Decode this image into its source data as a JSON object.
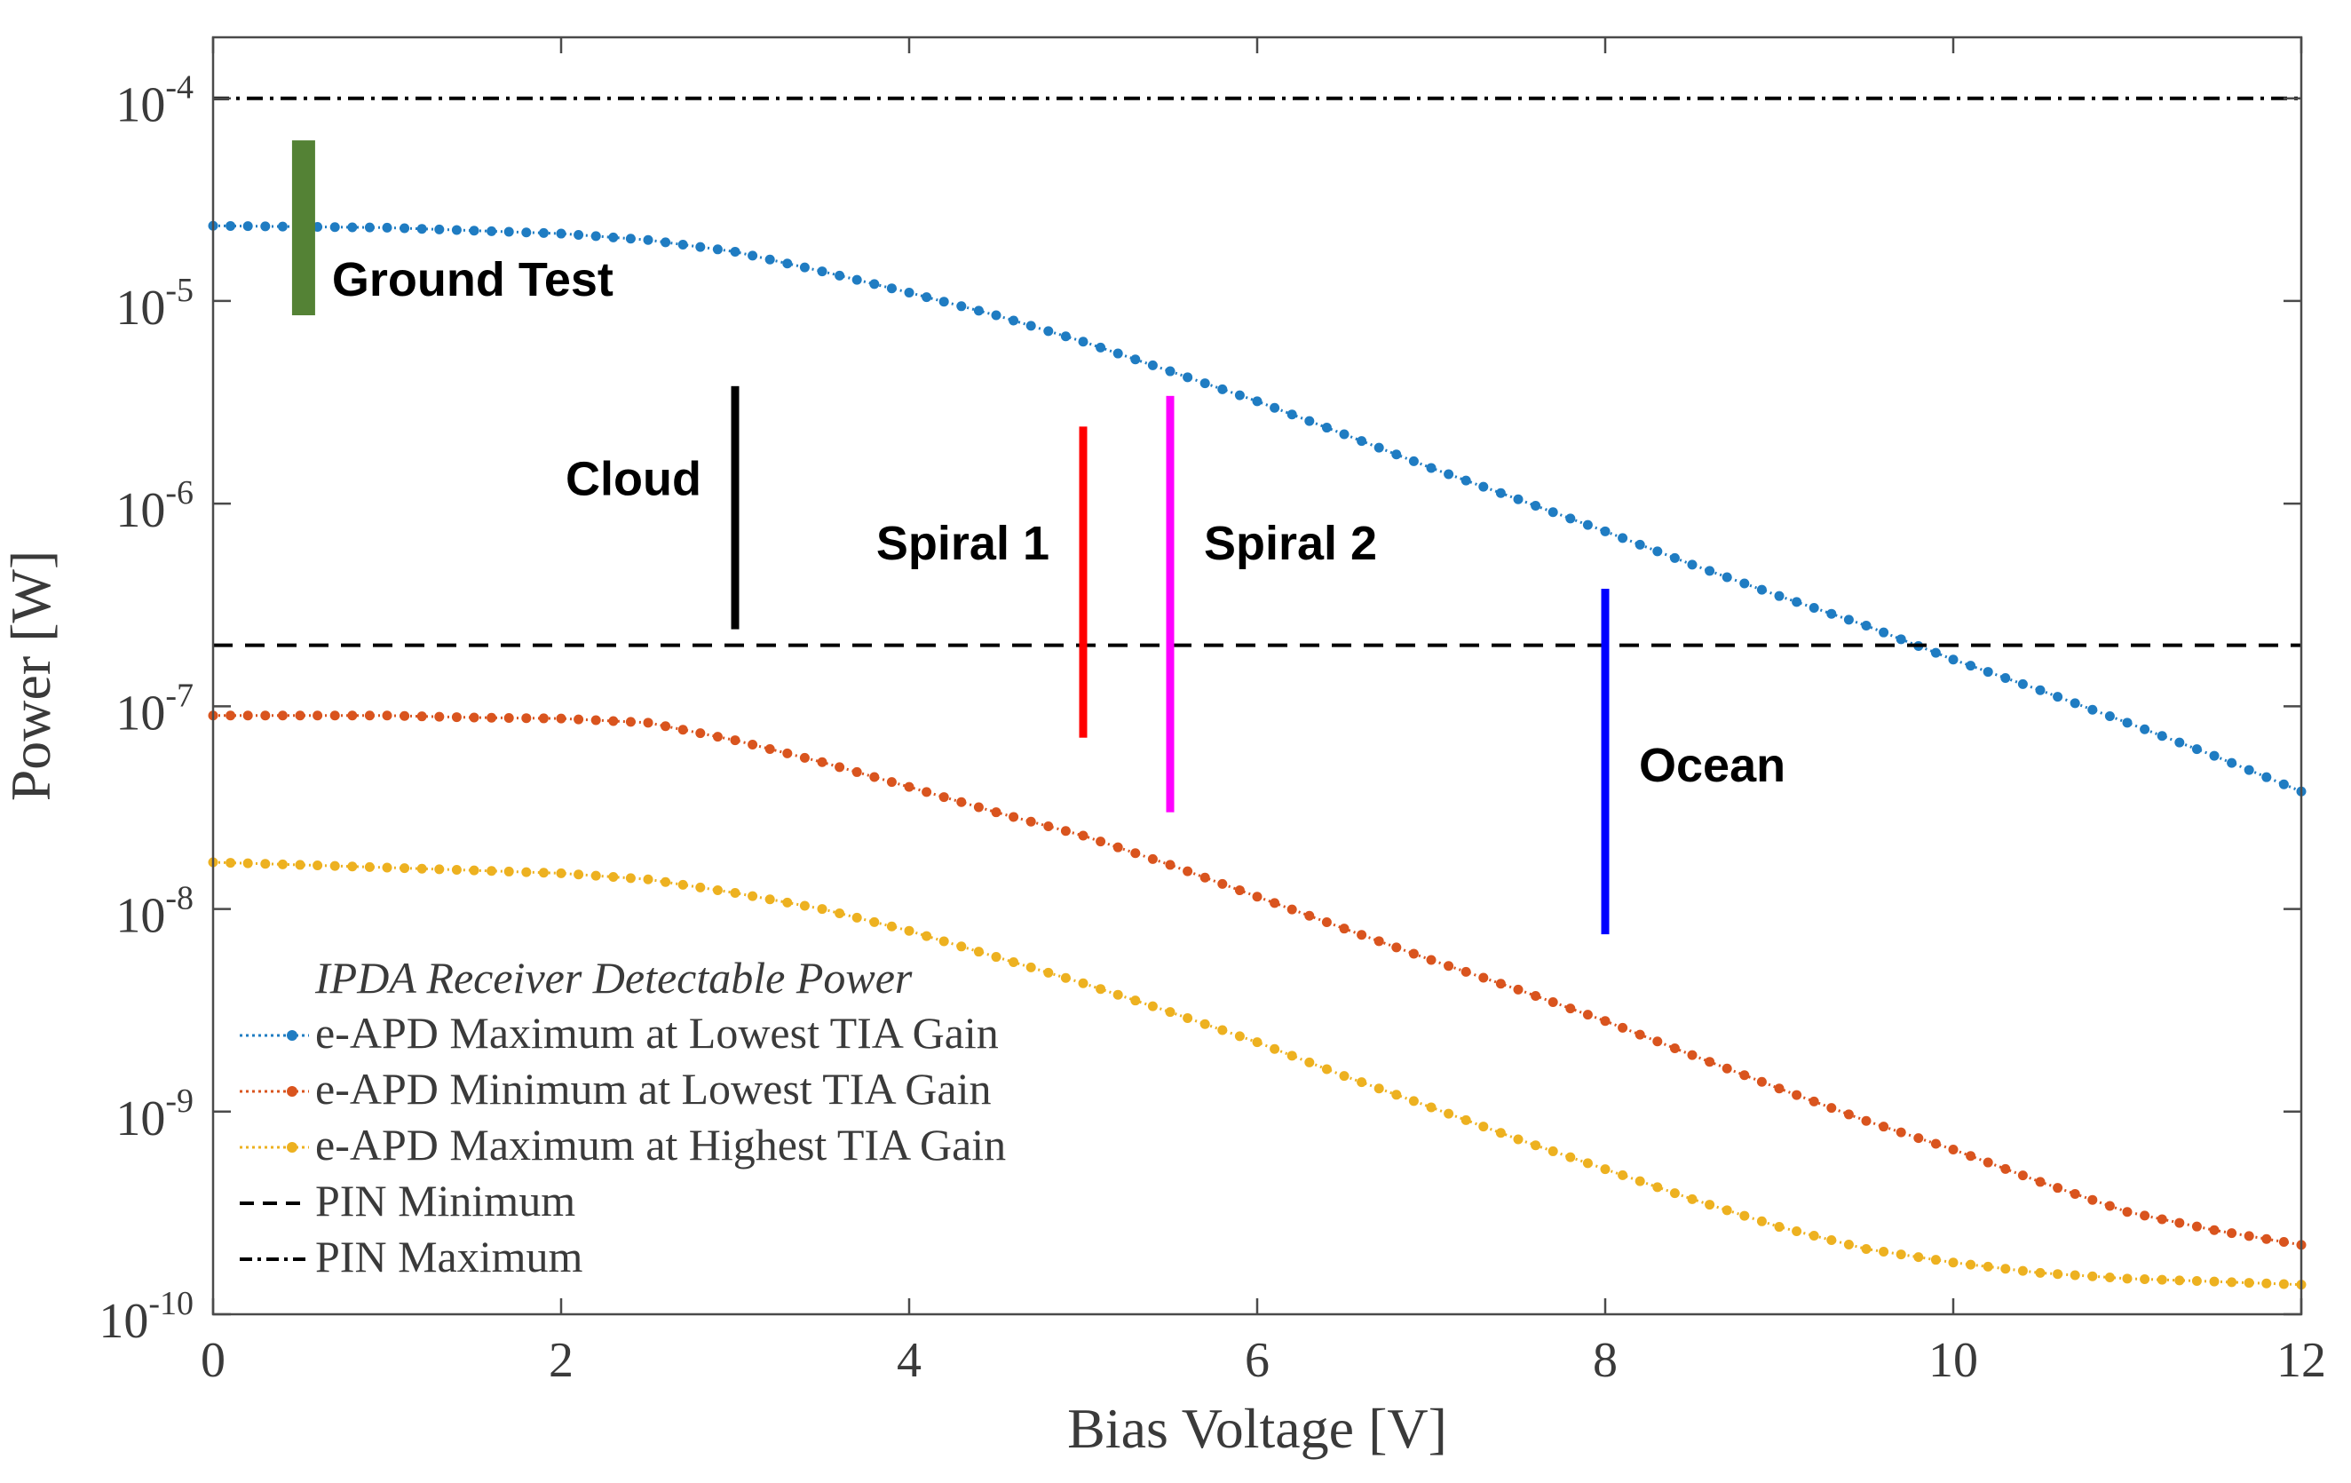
{
  "chart_data": {
    "type": "line",
    "title": "",
    "xlabel": "Bias Voltage [V]",
    "ylabel": "Power [W]",
    "xlim": [
      0,
      12
    ],
    "ylim": [
      1e-10,
      0.0002
    ],
    "yscale": "log",
    "grid": false,
    "xticks": [
      0,
      2,
      4,
      6,
      8,
      10,
      12
    ],
    "xtick_labels": [
      "0",
      "2",
      "4",
      "6",
      "8",
      "10",
      "12"
    ],
    "yticks": [
      {
        "value": 0.0001,
        "base": "10",
        "exp": "-4"
      },
      {
        "value": 1e-05,
        "base": "10",
        "exp": "-5"
      },
      {
        "value": 1e-06,
        "base": "10",
        "exp": "-6"
      },
      {
        "value": 1e-07,
        "base": "10",
        "exp": "-7"
      },
      {
        "value": 1e-08,
        "base": "10",
        "exp": "-8"
      },
      {
        "value": 1e-09,
        "base": "10",
        "exp": "-9"
      },
      {
        "value": 1e-10,
        "base": "10",
        "exp": "-10"
      }
    ],
    "legend": {
      "title": "IPDA Receiver Detectable Power",
      "placement": "bottom-left"
    },
    "series": [
      {
        "name": "e-APD Maximum at Lowest TIA Gain",
        "color": "#1f7cc2",
        "style": "dotted-markers",
        "x": [
          0,
          1,
          2,
          2.5,
          3,
          3.5,
          4,
          4.5,
          5,
          5.5,
          6,
          6.5,
          7,
          7.5,
          8,
          8.5,
          9,
          9.5,
          10,
          10.5,
          11,
          11.5,
          12
        ],
        "y": [
          2.35e-05,
          2.3e-05,
          2.15e-05,
          2e-05,
          1.75e-05,
          1.4e-05,
          1.1e-05,
          8.5e-06,
          6.3e-06,
          4.5e-06,
          3.2e-06,
          2.2e-06,
          1.5e-06,
          1.05e-06,
          7.3e-07,
          5e-07,
          3.5e-07,
          2.5e-07,
          1.7e-07,
          1.2e-07,
          8.3e-08,
          5.7e-08,
          3.8e-08
        ]
      },
      {
        "name": "e-APD Minimum at Lowest TIA Gain",
        "color": "#d9541e",
        "style": "dotted-markers",
        "x": [
          0,
          0.5,
          1,
          1.5,
          2,
          2.5,
          3,
          3.5,
          4,
          4.5,
          5,
          5.5,
          6,
          6.5,
          7,
          7.5,
          8,
          8.5,
          9,
          9.5,
          10,
          10.5,
          11,
          11.5,
          12
        ],
        "y": [
          9e-08,
          9e-08,
          9e-08,
          8.8e-08,
          8.7e-08,
          8.3e-08,
          6.8e-08,
          5.3e-08,
          4e-08,
          3e-08,
          2.3e-08,
          1.65e-08,
          1.15e-08,
          8e-09,
          5.6e-09,
          4e-09,
          2.8e-09,
          1.9e-09,
          1.3e-09,
          9e-10,
          6.5e-10,
          4.5e-10,
          3.2e-10,
          2.6e-10,
          2.2e-10
        ]
      },
      {
        "name": "e-APD Maximum at Highest TIA Gain",
        "color": "#edb120",
        "style": "dotted-markers",
        "x": [
          0,
          0.5,
          1,
          1.5,
          2,
          2.5,
          3,
          3.5,
          4,
          4.5,
          5,
          5.5,
          6,
          6.5,
          7,
          7.5,
          8,
          8.5,
          9,
          9.5,
          10,
          10.5,
          11,
          11.5,
          12
        ],
        "y": [
          1.7e-08,
          1.65e-08,
          1.6e-08,
          1.55e-08,
          1.5e-08,
          1.4e-08,
          1.2e-08,
          1e-08,
          7.8e-09,
          5.8e-09,
          4.3e-09,
          3.1e-09,
          2.2e-09,
          1.5e-09,
          1.05e-09,
          7.3e-10,
          5.2e-10,
          3.7e-10,
          2.7e-10,
          2.1e-10,
          1.8e-10,
          1.6e-10,
          1.5e-10,
          1.45e-10,
          1.4e-10
        ]
      },
      {
        "name": "PIN Minimum",
        "color": "#000000",
        "style": "dashed",
        "x": [
          0,
          12
        ],
        "y": [
          2e-07,
          2e-07
        ]
      },
      {
        "name": "PIN Maximum",
        "color": "#000000",
        "style": "dashdot",
        "x": [
          0,
          12
        ],
        "y": [
          0.0001,
          0.0001
        ]
      }
    ],
    "annotations": [
      {
        "label": "Ground Test",
        "x": 0.52,
        "ymin": 8.5e-06,
        "ymax": 6.2e-05,
        "color": "#548235",
        "thick": true,
        "label_side": "right"
      },
      {
        "label": "Cloud",
        "x": 3.0,
        "ymin": 2.4e-07,
        "ymax": 3.8e-06,
        "color": "#000000",
        "thick": false,
        "label_side": "left"
      },
      {
        "label": "Spiral 1",
        "x": 5.0,
        "ymin": 7e-08,
        "ymax": 2.4e-06,
        "color": "#ff0000",
        "thick": false,
        "label_side": "left"
      },
      {
        "label": "Spiral 2",
        "x": 5.5,
        "ymin": 3e-08,
        "ymax": 3.4e-06,
        "color": "#ff00ff",
        "thick": false,
        "label_side": "right"
      },
      {
        "label": "Ocean",
        "x": 8.0,
        "ymin": 7.5e-09,
        "ymax": 3.8e-07,
        "color": "#0000ff",
        "thick": false,
        "label_side": "right"
      }
    ]
  }
}
